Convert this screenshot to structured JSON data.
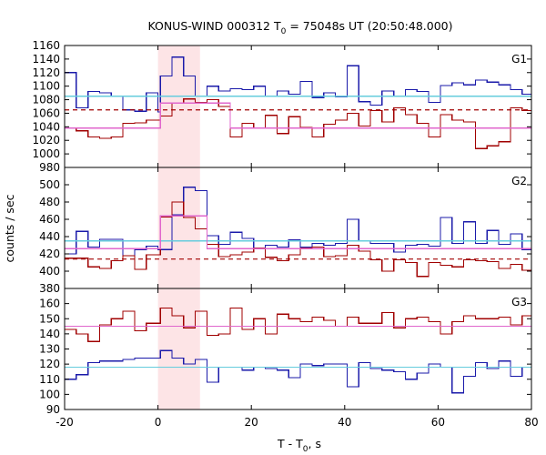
{
  "title": {
    "prefix": "KONUS-WIND 000312 T",
    "sub": "0",
    "suffix": " = 75048s UT (20:50:48.000)"
  },
  "ylabel": "counts / sec",
  "xlabel": {
    "prefix": "T - T",
    "sub": "0",
    "suffix": ", s"
  },
  "colors": {
    "dark_red": "#a00000",
    "dark_blue": "#1a1aaa",
    "light_cyan": "#66ccdd",
    "pink": "#e066cc",
    "highlight": "#fde4e6"
  },
  "chart_data": [
    {
      "type": "step",
      "panel": "G1",
      "xlim": [
        -20,
        80
      ],
      "ylim": [
        980,
        1160
      ],
      "yticks": [
        980,
        1000,
        1020,
        1040,
        1060,
        1080,
        1100,
        1120,
        1140,
        1160
      ],
      "highlight_interval": [
        0,
        9
      ],
      "bin_edges": [
        -20,
        -17.5,
        -15,
        -12.5,
        -10,
        -7.5,
        -5,
        -2.5,
        0,
        0.5,
        3,
        5.5,
        8,
        10.5,
        13,
        15.5,
        18,
        20.5,
        23,
        25.5,
        28,
        30.5,
        33,
        35.5,
        38,
        40.5,
        43,
        45.5,
        48,
        50.5,
        53,
        55.5,
        58,
        60.5,
        63,
        65.5,
        68,
        70.5,
        73,
        75.5,
        78,
        80
      ],
      "series": [
        {
          "color": "dark_blue",
          "values": [
            1120,
            1068,
            1092,
            1090,
            1085,
            1065,
            1063,
            1090,
            1062,
            1115,
            1143,
            1115,
            1085,
            1100,
            1093,
            1096,
            1095,
            1100,
            1085,
            1093,
            1088,
            1107,
            1083,
            1090,
            1084,
            1130,
            1077,
            1072,
            1093,
            1085,
            1095,
            1092,
            1076,
            1101,
            1105,
            1102,
            1109,
            1106,
            1102,
            1095,
            1088
          ]
        },
        {
          "color": "dark_red",
          "values": [
            1038,
            1034,
            1025,
            1023,
            1025,
            1045,
            1046,
            1050,
            1050,
            1056,
            1075,
            1081,
            1076,
            1080,
            1070,
            1025,
            1045,
            1038,
            1057,
            1030,
            1055,
            1039,
            1025,
            1044,
            1050,
            1060,
            1041,
            1064,
            1047,
            1068,
            1058,
            1045,
            1025,
            1058,
            1050,
            1047,
            1008,
            1012,
            1018,
            1068,
            1064
          ]
        },
        {
          "color": "light_cyan",
          "values": [
            1085,
            1085,
            1085,
            1085,
            1085,
            1085,
            1085,
            1085,
            1085,
            1085,
            1085,
            1085,
            1085,
            1085,
            1085,
            1085,
            1085,
            1085,
            1085,
            1085,
            1085,
            1085,
            1085,
            1085,
            1085,
            1085,
            1085,
            1085,
            1085,
            1085,
            1085,
            1085,
            1085,
            1085,
            1085,
            1085,
            1085,
            1085,
            1085,
            1085,
            1085
          ]
        },
        {
          "color": "pink",
          "values": [
            1038,
            1038,
            1038,
            1038,
            1038,
            1038,
            1038,
            1038,
            1038,
            1075,
            1075,
            1075,
            1075,
            1075,
            1075,
            1038,
            1038,
            1038,
            1038,
            1038,
            1038,
            1038,
            1038,
            1038,
            1038,
            1038,
            1038,
            1038,
            1038,
            1038,
            1038,
            1038,
            1038,
            1038,
            1038,
            1038,
            1038,
            1038,
            1038,
            1038,
            1038
          ]
        }
      ],
      "dashed_line": {
        "color": "dark_red",
        "y": 1065
      }
    },
    {
      "type": "step",
      "panel": "G2",
      "xlim": [
        -20,
        80
      ],
      "ylim": [
        380,
        520
      ],
      "yticks": [
        380,
        400,
        420,
        440,
        460,
        480,
        500
      ],
      "highlight_interval": [
        0,
        9
      ],
      "bin_edges": [
        -20,
        -17.5,
        -15,
        -12.5,
        -10,
        -7.5,
        -5,
        -2.5,
        0,
        0.5,
        3,
        5.5,
        8,
        10.5,
        13,
        15.5,
        18,
        20.5,
        23,
        25.5,
        28,
        30.5,
        33,
        35.5,
        38,
        40.5,
        43,
        45.5,
        48,
        50.5,
        53,
        55.5,
        58,
        60.5,
        63,
        65.5,
        68,
        70.5,
        73,
        75.5,
        78,
        80
      ],
      "series": [
        {
          "color": "dark_blue",
          "values": [
            420,
            446,
            428,
            437,
            437,
            418,
            425,
            429,
            425,
            425,
            465,
            497,
            493,
            441,
            431,
            445,
            438,
            426,
            430,
            428,
            436,
            428,
            432,
            430,
            432,
            460,
            435,
            432,
            432,
            422,
            430,
            431,
            429,
            462,
            432,
            457,
            432,
            447,
            431,
            443,
            425
          ]
        },
        {
          "color": "dark_red",
          "values": [
            415,
            415,
            405,
            403,
            412,
            418,
            402,
            419,
            419,
            463,
            480,
            462,
            449,
            431,
            417,
            419,
            422,
            427,
            416,
            412,
            419,
            427,
            428,
            417,
            418,
            430,
            423,
            413,
            400,
            413,
            410,
            394,
            410,
            407,
            405,
            413,
            412,
            411,
            403,
            408,
            401
          ]
        },
        {
          "color": "light_cyan",
          "values": [
            435,
            435,
            435,
            435,
            435,
            435,
            435,
            435,
            435,
            435,
            435,
            435,
            435,
            435,
            435,
            435,
            435,
            435,
            435,
            435,
            435,
            435,
            435,
            435,
            435,
            435,
            435,
            435,
            435,
            435,
            435,
            435,
            435,
            435,
            435,
            435,
            435,
            435,
            435,
            435,
            435
          ]
        },
        {
          "color": "pink",
          "values": [
            426,
            426,
            426,
            426,
            426,
            426,
            426,
            426,
            426,
            464,
            464,
            464,
            464,
            426,
            426,
            426,
            426,
            426,
            426,
            426,
            426,
            426,
            426,
            426,
            426,
            426,
            426,
            426,
            426,
            426,
            426,
            426,
            426,
            426,
            426,
            426,
            426,
            426,
            426,
            426,
            426
          ]
        }
      ],
      "dashed_line": {
        "color": "dark_red",
        "y": 414
      }
    },
    {
      "type": "step",
      "panel": "G3",
      "xlim": [
        -20,
        80
      ],
      "ylim": [
        90,
        170
      ],
      "yticks": [
        90,
        100,
        110,
        120,
        130,
        140,
        150,
        160
      ],
      "xticks": [
        -20,
        0,
        20,
        40,
        60,
        80
      ],
      "highlight_interval": [
        0,
        9
      ],
      "bin_edges": [
        -20,
        -17.5,
        -15,
        -12.5,
        -10,
        -7.5,
        -5,
        -2.5,
        0,
        0.5,
        3,
        5.5,
        8,
        10.5,
        13,
        15.5,
        18,
        20.5,
        23,
        25.5,
        28,
        30.5,
        33,
        35.5,
        38,
        40.5,
        43,
        45.5,
        48,
        50.5,
        53,
        55.5,
        58,
        60.5,
        63,
        65.5,
        68,
        70.5,
        73,
        75.5,
        78,
        80
      ],
      "series": [
        {
          "color": "dark_red",
          "values": [
            143,
            140,
            135,
            146,
            150,
            155,
            142,
            147,
            147,
            157,
            152,
            144,
            155,
            139,
            140,
            157,
            143,
            150,
            140,
            153,
            150,
            148,
            151,
            149,
            145,
            151,
            147,
            147,
            154,
            144,
            150,
            151,
            148,
            140,
            148,
            152,
            150,
            150,
            151,
            146,
            152
          ]
        },
        {
          "color": "dark_blue",
          "values": [
            110,
            113,
            121,
            122,
            122,
            123,
            124,
            124,
            124,
            129,
            124,
            120,
            123,
            108,
            118,
            118,
            116,
            118,
            117,
            116,
            111,
            120,
            119,
            120,
            120,
            105,
            121,
            117,
            116,
            115,
            110,
            114,
            120,
            118,
            101,
            112,
            121,
            117,
            122,
            112,
            118
          ]
        },
        {
          "color": "light_cyan",
          "values": [
            118,
            118,
            118,
            118,
            118,
            118,
            118,
            118,
            118,
            118,
            118,
            118,
            118,
            118,
            118,
            118,
            118,
            118,
            118,
            118,
            118,
            118,
            118,
            118,
            118,
            118,
            118,
            118,
            118,
            118,
            118,
            118,
            118,
            118,
            118,
            118,
            118,
            118,
            118,
            118,
            118
          ]
        },
        {
          "color": "pink",
          "values": [
            145,
            145,
            145,
            145,
            145,
            145,
            145,
            145,
            145,
            145,
            145,
            145,
            145,
            145,
            145,
            145,
            145,
            145,
            145,
            145,
            145,
            145,
            145,
            145,
            145,
            145,
            145,
            145,
            145,
            145,
            145,
            145,
            145,
            145,
            145,
            145,
            145,
            145,
            145,
            145,
            145
          ]
        }
      ]
    }
  ]
}
